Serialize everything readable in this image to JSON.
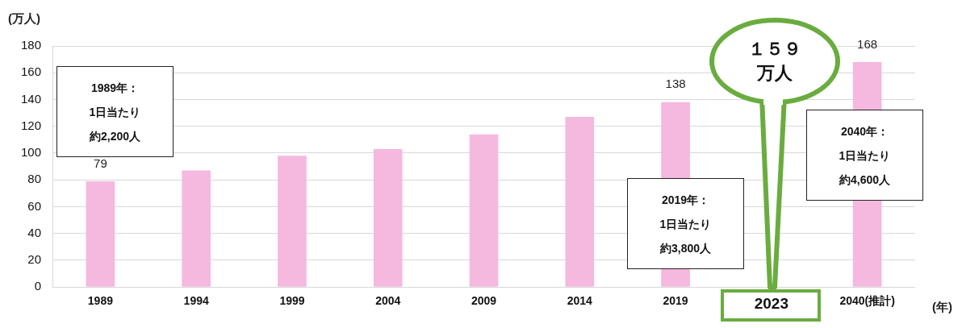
{
  "chart_data": {
    "type": "bar",
    "ylabel": "(万人)",
    "xlabel": "(年)",
    "categories": [
      "1989",
      "1994",
      "1999",
      "2004",
      "2009",
      "2014",
      "2019",
      "2023",
      "2040(推計)"
    ],
    "values": [
      79,
      87,
      98,
      103,
      114,
      127,
      138,
      null,
      168
    ],
    "value_labels": [
      "79",
      null,
      null,
      null,
      null,
      null,
      "138",
      null,
      "168"
    ],
    "color": "#f5b8df",
    "ylim": [
      0,
      180
    ],
    "yticks": [
      0,
      20,
      40,
      60,
      80,
      100,
      120,
      140,
      160,
      180
    ],
    "grid": "y",
    "legend": false,
    "annotations": [
      "1989年：",
      "1日当たり",
      "約2,200人",
      "2019年：",
      "1日当たり",
      "約3,800人",
      "2040年：",
      "1日当たり",
      "約4,600人",
      "１５９",
      "万人"
    ]
  }
}
